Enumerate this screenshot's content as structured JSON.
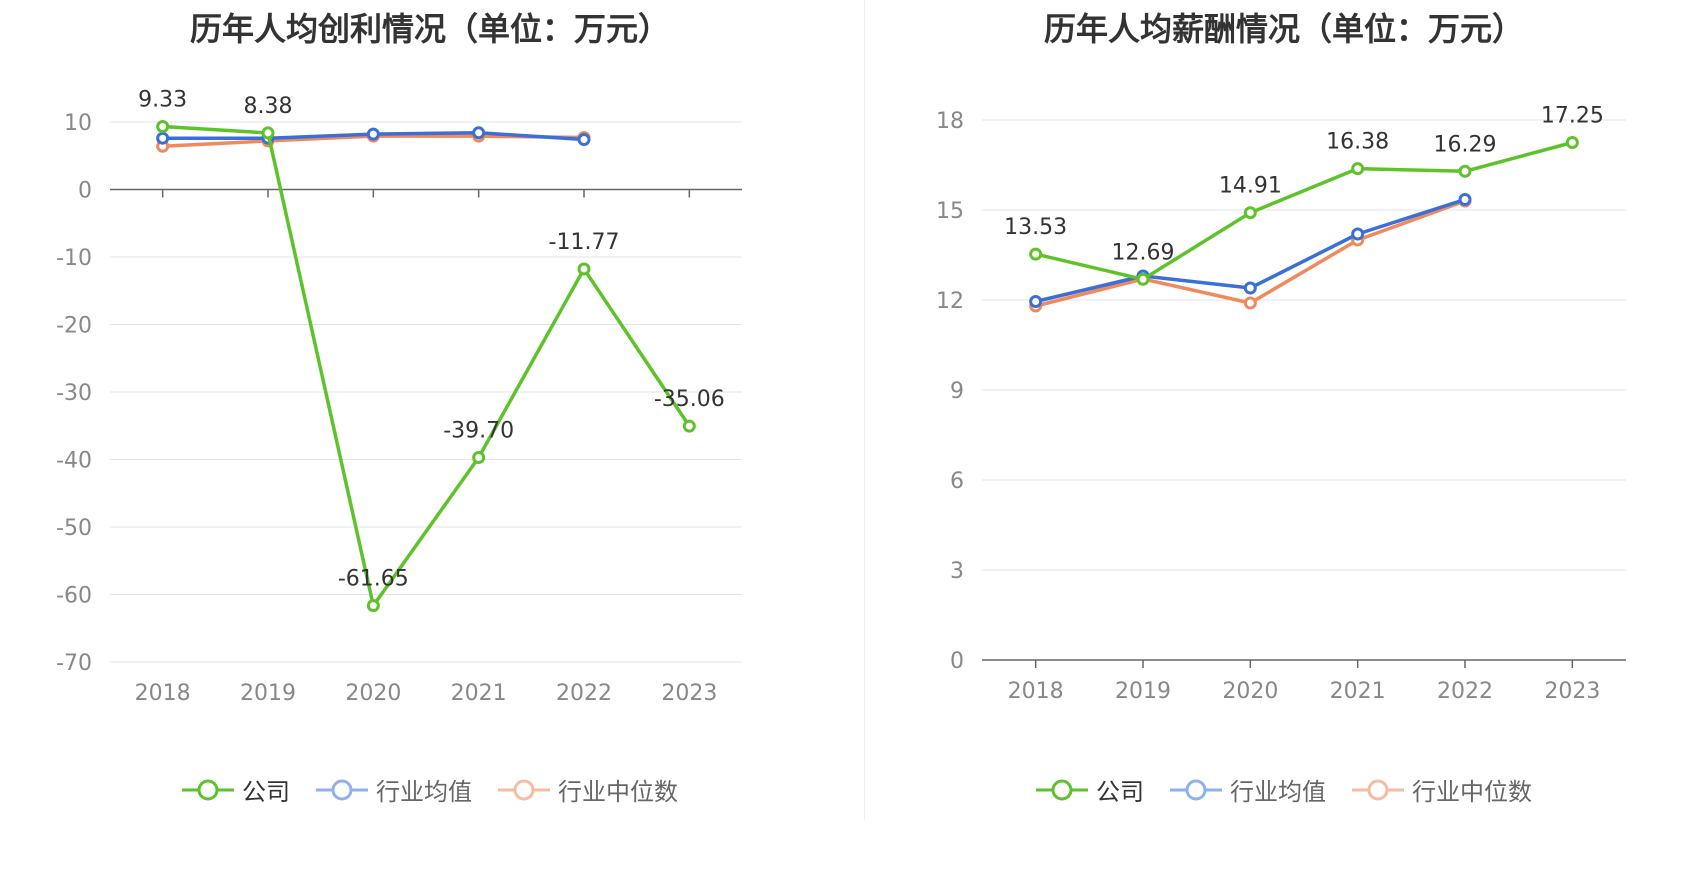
{
  "legend": {
    "company": "公司",
    "industry_avg": "行业均值",
    "industry_median": "行业中位数"
  },
  "colors": {
    "company": "#5ec22a",
    "industry_avg": "#3a6fd8",
    "industry_median": "#f08a5d",
    "industry_avg_legend": "#8fb0ec",
    "industry_median_legend": "#f6bba0",
    "grid": "#e0e3ef",
    "axis": "#666666"
  },
  "chart_data": [
    {
      "type": "line",
      "title": "历年人均创利情况（单位：万元）",
      "categories": [
        "2018",
        "2019",
        "2020",
        "2021",
        "2022",
        "2023"
      ],
      "ylim": [
        -70,
        10
      ],
      "yticks": [
        10,
        0,
        -10,
        -20,
        -30,
        -40,
        -50,
        -60,
        -70
      ],
      "series": [
        {
          "name": "公司",
          "values": [
            9.33,
            8.38,
            -61.65,
            -39.7,
            -11.77,
            -35.06
          ],
          "labels": [
            "9.33",
            "8.38",
            "-61.65",
            "-39.70",
            "-11.77",
            "-35.06"
          ]
        },
        {
          "name": "行业均值",
          "values": [
            7.6,
            7.6,
            8.2,
            8.4,
            7.4,
            null
          ]
        },
        {
          "name": "行业中位数",
          "values": [
            6.4,
            7.2,
            7.9,
            7.9,
            7.7,
            null
          ]
        }
      ]
    },
    {
      "type": "line",
      "title": "历年人均薪酬情况（单位：万元）",
      "categories": [
        "2018",
        "2019",
        "2020",
        "2021",
        "2022",
        "2023"
      ],
      "ylim": [
        0,
        18
      ],
      "yticks": [
        18,
        15,
        12,
        9,
        6,
        3,
        0
      ],
      "series": [
        {
          "name": "公司",
          "values": [
            13.53,
            12.69,
            14.91,
            16.38,
            16.29,
            17.25
          ],
          "labels": [
            "13.53",
            "12.69",
            "14.91",
            "16.38",
            "16.29",
            "17.25"
          ]
        },
        {
          "name": "行业均值",
          "values": [
            11.95,
            12.8,
            12.4,
            14.2,
            15.35,
            null
          ]
        },
        {
          "name": "行业中位数",
          "values": [
            11.8,
            12.7,
            11.9,
            14.0,
            15.3,
            null
          ]
        }
      ]
    }
  ]
}
